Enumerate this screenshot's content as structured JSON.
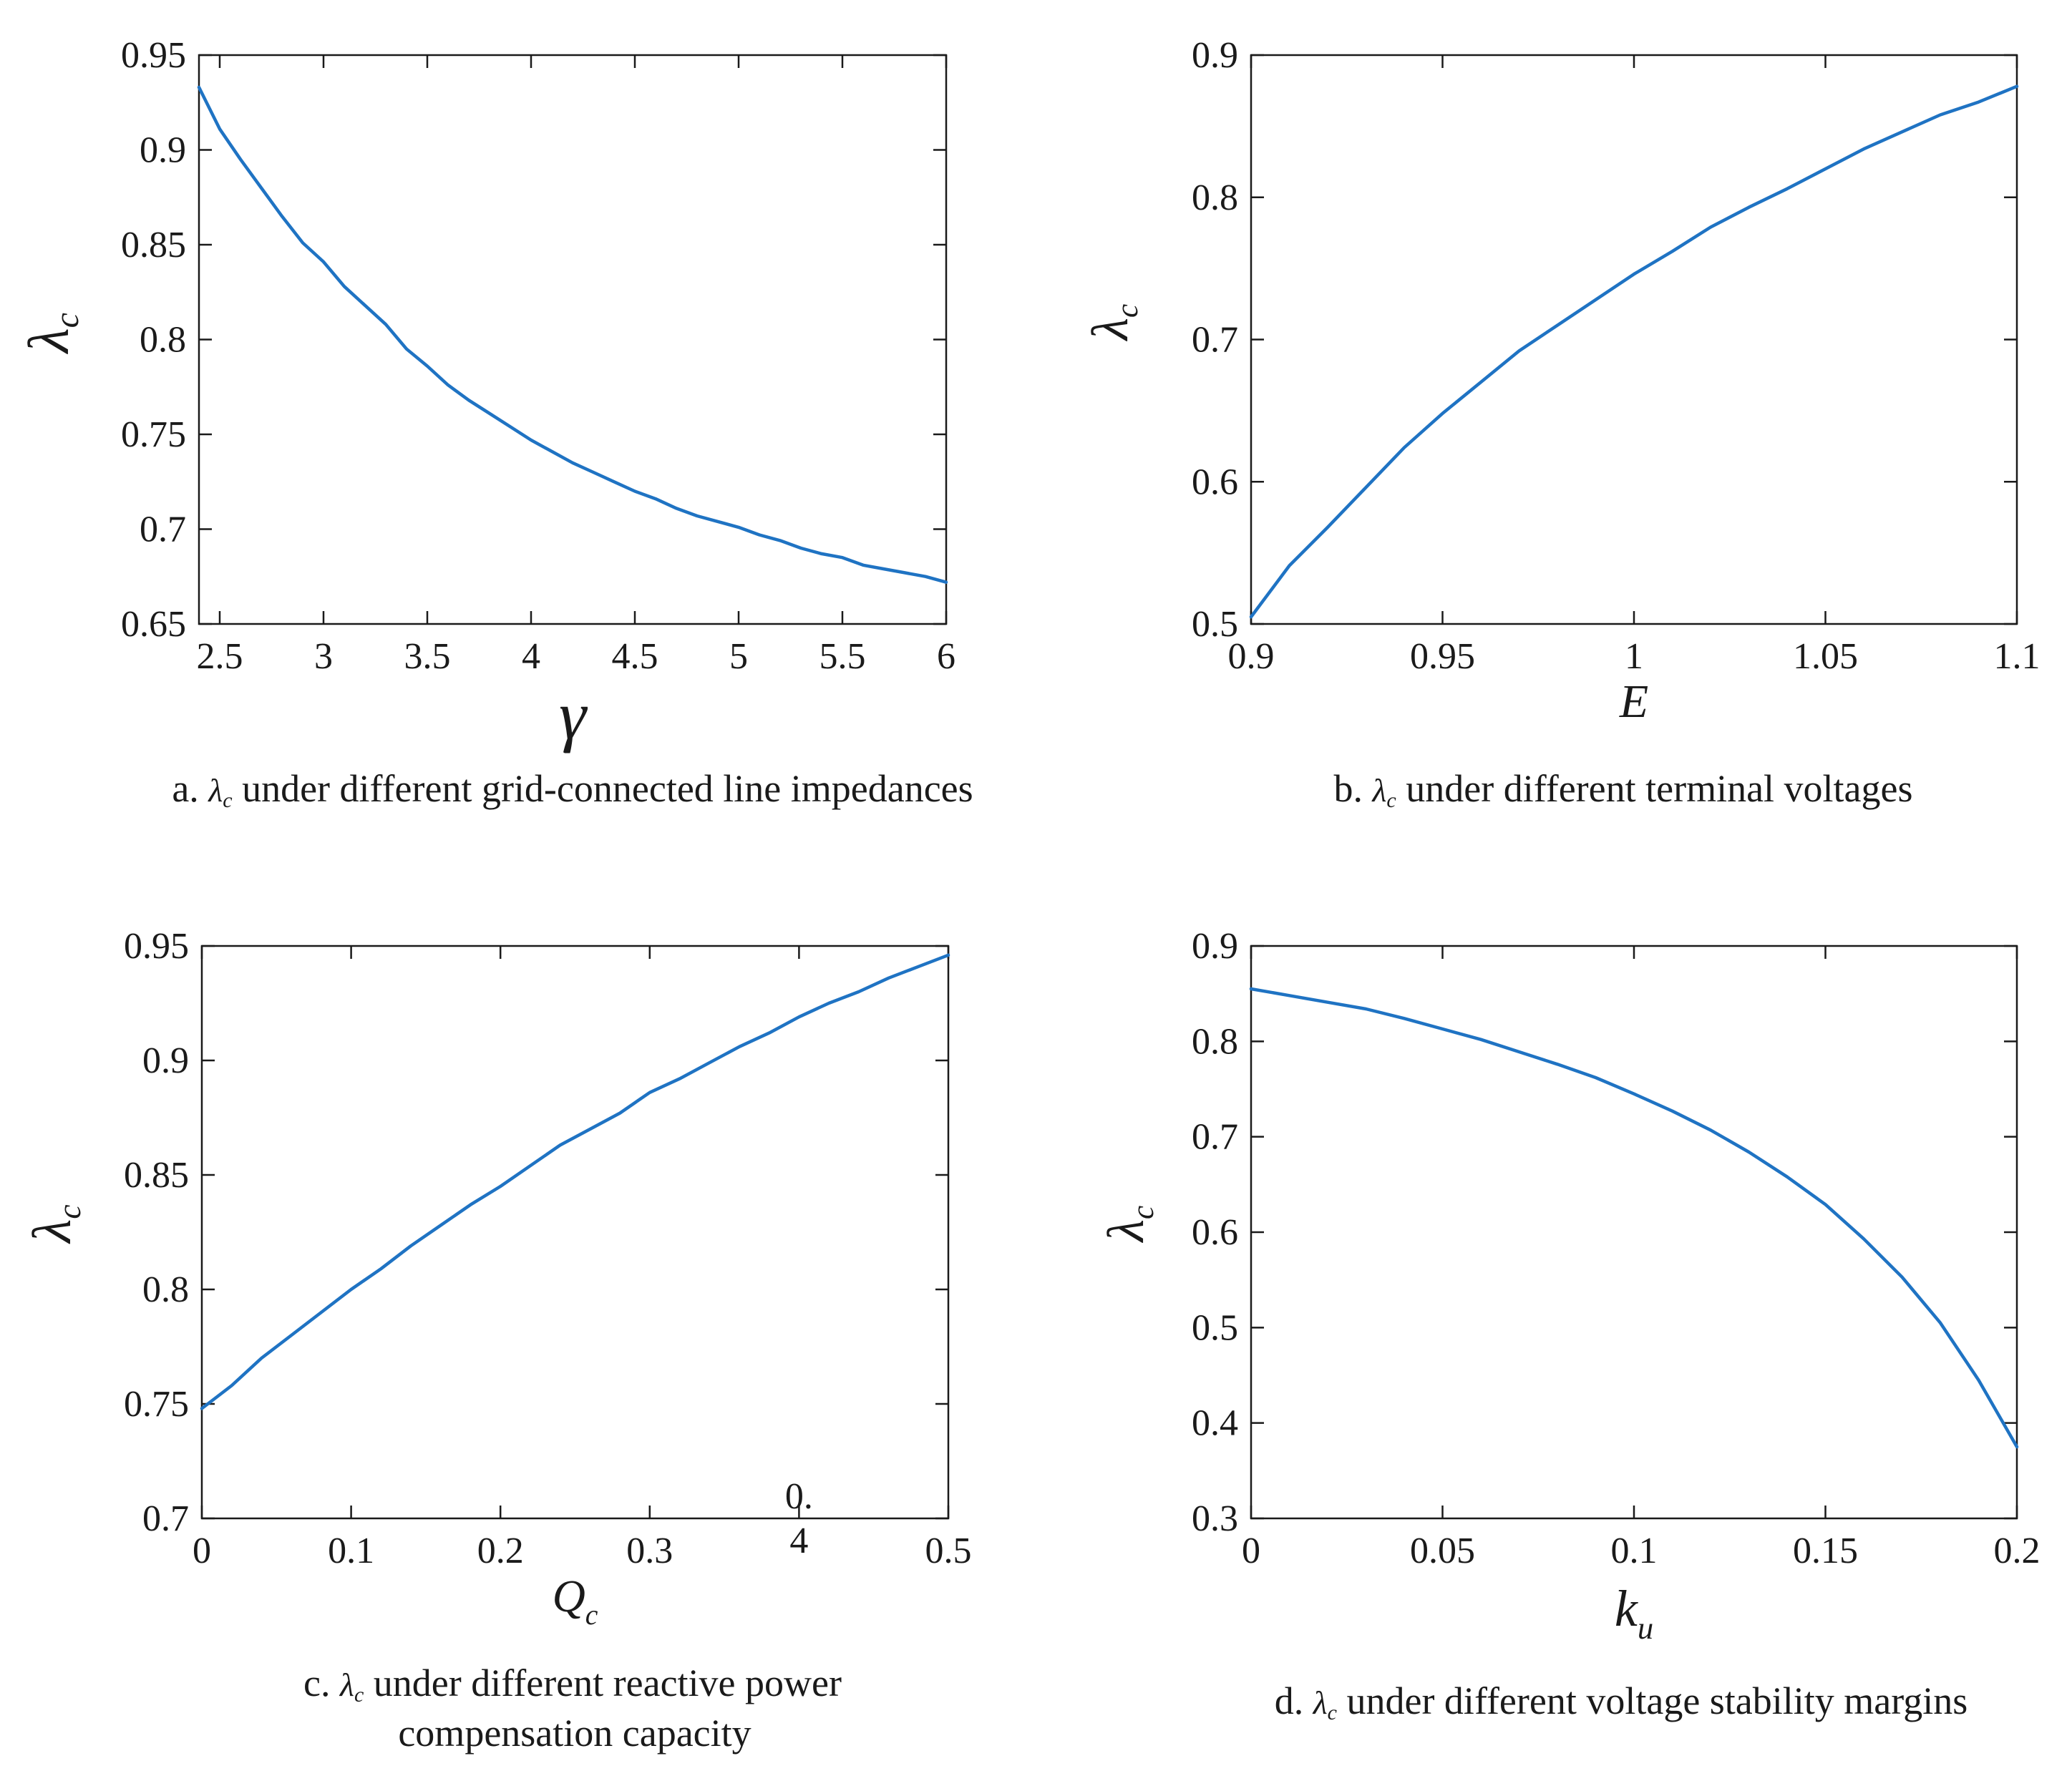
{
  "colors": {
    "line": "#1f73c3",
    "axis": "#1a1a1a",
    "background": "#ffffff"
  },
  "chart_data": [
    {
      "id": "a",
      "type": "line",
      "xlabel": "γ",
      "ylabel": "λc",
      "ylabel_main": "λ",
      "ylabel_sub": "c",
      "xlim": [
        2.4,
        6.0
      ],
      "ylim": [
        0.65,
        0.95
      ],
      "xticks": [
        2.5,
        3,
        3.5,
        4,
        4.5,
        5,
        5.5,
        6
      ],
      "xtick_labels": [
        "2.5",
        "3",
        "3.5",
        "4",
        "4.5",
        "5",
        "5.5",
        "6"
      ],
      "yticks": [
        0.65,
        0.7,
        0.75,
        0.8,
        0.85,
        0.9,
        0.95
      ],
      "ytick_labels": [
        "0.65",
        "0.7",
        "0.75",
        "0.8",
        "0.85",
        "0.9",
        "0.95"
      ],
      "caption": {
        "prefix": "a. ",
        "symbol": "λ",
        "symbol_sub": "c",
        "text": "under different grid-connected line impedances",
        "line2": ""
      },
      "series": [
        {
          "name": "λc",
          "x": [
            2.4,
            2.5,
            2.6,
            2.7,
            2.8,
            2.9,
            3.0,
            3.1,
            3.2,
            3.3,
            3.4,
            3.5,
            3.6,
            3.7,
            3.8,
            3.9,
            4.0,
            4.1,
            4.2,
            4.3,
            4.4,
            4.5,
            4.6,
            4.7,
            4.8,
            4.9,
            5.0,
            5.1,
            5.2,
            5.3,
            5.4,
            5.5,
            5.6,
            5.7,
            5.8,
            5.9,
            6.0
          ],
          "y": [
            0.933,
            0.911,
            0.895,
            0.88,
            0.865,
            0.851,
            0.841,
            0.828,
            0.818,
            0.808,
            0.795,
            0.786,
            0.776,
            0.768,
            0.761,
            0.754,
            0.747,
            0.741,
            0.735,
            0.73,
            0.725,
            0.72,
            0.716,
            0.711,
            0.707,
            0.704,
            0.701,
            0.697,
            0.694,
            0.69,
            0.687,
            0.685,
            0.681,
            0.679,
            0.677,
            0.675,
            0.672
          ]
        }
      ]
    },
    {
      "id": "b",
      "type": "line",
      "xlabel": "E",
      "ylabel": "λc",
      "ylabel_main": "λ",
      "ylabel_sub": "c",
      "xlim": [
        0.9,
        1.1
      ],
      "ylim": [
        0.5,
        0.9
      ],
      "xticks": [
        0.9,
        0.95,
        1.0,
        1.05,
        1.1
      ],
      "xtick_labels": [
        "0.9",
        "0.95",
        "1",
        "1.05",
        "1.1"
      ],
      "yticks": [
        0.5,
        0.6,
        0.7,
        0.8,
        0.9
      ],
      "ytick_labels": [
        "0.5",
        "0.6",
        "0.7",
        "0.8",
        "0.9"
      ],
      "caption": {
        "prefix": "b. ",
        "symbol": "λ",
        "symbol_sub": "c",
        "text": "under different terminal voltages",
        "line2": ""
      },
      "series": [
        {
          "name": "λc",
          "x": [
            0.9,
            0.91,
            0.92,
            0.93,
            0.94,
            0.95,
            0.96,
            0.97,
            0.98,
            0.99,
            1.0,
            1.01,
            1.02,
            1.03,
            1.04,
            1.05,
            1.06,
            1.07,
            1.08,
            1.09,
            1.1
          ],
          "y": [
            0.505,
            0.541,
            0.568,
            0.596,
            0.624,
            0.648,
            0.67,
            0.692,
            0.71,
            0.728,
            0.746,
            0.762,
            0.779,
            0.793,
            0.806,
            0.82,
            0.834,
            0.846,
            0.858,
            0.867,
            0.878
          ]
        }
      ]
    },
    {
      "id": "c",
      "type": "line",
      "xlabel": "Qc",
      "ylabel": "λc",
      "xlabel_main": "Q",
      "xlabel_sub": "c",
      "ylabel_main": "λ",
      "ylabel_sub": "c",
      "xlim": [
        0,
        0.5
      ],
      "ylim": [
        0.7,
        0.95
      ],
      "xticks": [
        0,
        0.1,
        0.2,
        0.3,
        0.4,
        0.5
      ],
      "xtick_labels": [
        "0",
        "0.1",
        "0.2",
        "0.3",
        "0.\n4",
        "0.5"
      ],
      "yticks": [
        0.7,
        0.75,
        0.8,
        0.85,
        0.9,
        0.95
      ],
      "ytick_labels": [
        "0.7",
        "0.75",
        "0.8",
        "0.85",
        "0.9",
        "0.95"
      ],
      "caption": {
        "prefix": "c. ",
        "symbol": "λ",
        "symbol_sub": "c",
        "text": "under different reactive power",
        "line2": "compensation capacity"
      },
      "series": [
        {
          "name": "λc",
          "x": [
            0,
            0.02,
            0.04,
            0.06,
            0.08,
            0.1,
            0.12,
            0.14,
            0.16,
            0.18,
            0.2,
            0.22,
            0.24,
            0.26,
            0.28,
            0.3,
            0.32,
            0.34,
            0.36,
            0.38,
            0.4,
            0.42,
            0.44,
            0.46,
            0.48,
            0.5
          ],
          "y": [
            0.748,
            0.758,
            0.77,
            0.78,
            0.79,
            0.8,
            0.809,
            0.819,
            0.828,
            0.837,
            0.845,
            0.854,
            0.863,
            0.87,
            0.877,
            0.886,
            0.892,
            0.899,
            0.906,
            0.912,
            0.919,
            0.925,
            0.93,
            0.936,
            0.941,
            0.946
          ]
        }
      ]
    },
    {
      "id": "d",
      "type": "line",
      "xlabel": "ku",
      "ylabel": "λc",
      "xlabel_main": "k",
      "xlabel_sub": "u",
      "ylabel_main": "λ",
      "ylabel_sub": "c",
      "xlim": [
        0,
        0.2
      ],
      "ylim": [
        0.3,
        0.9
      ],
      "xticks": [
        0,
        0.05,
        0.1,
        0.15,
        0.2
      ],
      "xtick_labels": [
        "0",
        "0.05",
        "0.1",
        "0.15",
        "0.2"
      ],
      "yticks": [
        0.3,
        0.4,
        0.5,
        0.6,
        0.7,
        0.8,
        0.9
      ],
      "ytick_labels": [
        "0.3",
        "0.4",
        "0.5",
        "0.6",
        "0.7",
        "0.8",
        "0.9"
      ],
      "caption": {
        "prefix": "d. ",
        "symbol": "λ",
        "symbol_sub": "c",
        "text": "under different voltage stability margins",
        "line2": ""
      },
      "series": [
        {
          "name": "λc",
          "x": [
            0,
            0.01,
            0.02,
            0.03,
            0.04,
            0.05,
            0.06,
            0.07,
            0.08,
            0.09,
            0.1,
            0.11,
            0.12,
            0.13,
            0.14,
            0.15,
            0.16,
            0.17,
            0.18,
            0.19,
            0.2
          ],
          "y": [
            0.855,
            0.848,
            0.841,
            0.834,
            0.824,
            0.813,
            0.802,
            0.789,
            0.776,
            0.762,
            0.745,
            0.727,
            0.707,
            0.684,
            0.658,
            0.629,
            0.593,
            0.553,
            0.505,
            0.445,
            0.375
          ]
        }
      ]
    }
  ]
}
